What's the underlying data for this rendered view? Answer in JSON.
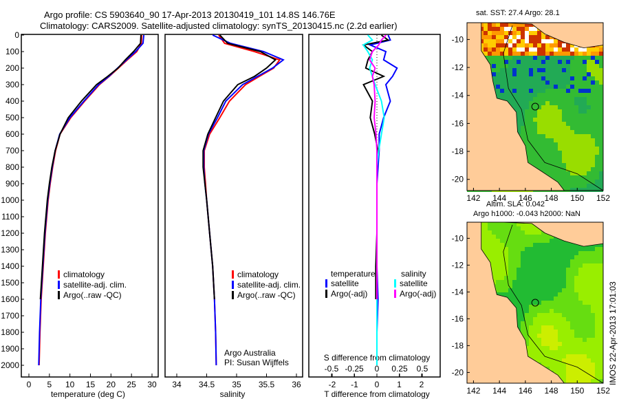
{
  "title_line1": "Argo profile: CS 5903640_90 17-Apr-2013 20130419_101 14.8S 146.76E",
  "title_line2": "Climatology: CARS2009. Satellite-adjusted climatology: synTS_20130415.nc (2.2d earlier)",
  "credit": "Argo Australia",
  "pi": "PI: Susan Wijffels",
  "timestamp": "IMOS 22-Apr-2013 17:01:03",
  "colors": {
    "climatology": "#ff0000",
    "satellite": "#0000ff",
    "argo": "#000000",
    "sal_satellite": "#00ffff",
    "sal_argo": "#ff00ff",
    "land": "#ffcc99"
  },
  "chart_data": [
    {
      "type": "line",
      "name": "temperature-profile",
      "xlabel": "temperature (deg C)",
      "ylabel": "",
      "xlim": [
        -1,
        31
      ],
      "ylim": [
        2050,
        0
      ],
      "xticks": [
        0,
        5,
        10,
        15,
        20,
        25,
        30
      ],
      "yticks": [
        0,
        100,
        200,
        300,
        400,
        500,
        600,
        700,
        800,
        900,
        1000,
        1100,
        1200,
        1300,
        1400,
        1500,
        1600,
        1700,
        1800,
        1900,
        2000
      ],
      "legend": [
        "climatology",
        "satellite-adj. clim.",
        "Argo(..raw -QC)"
      ],
      "legend_position": "lower-center",
      "depth": [
        0,
        50,
        100,
        150,
        200,
        250,
        300,
        400,
        500,
        600,
        700,
        800,
        900,
        1000,
        1200,
        1400,
        1600,
        1800,
        2000
      ],
      "series": [
        {
          "name": "climatology",
          "values": [
            27.5,
            27.4,
            26.3,
            24,
            21.8,
            19.6,
            17.2,
            13.6,
            10.2,
            7.6,
            6.5,
            5.8,
            5.2,
            4.7,
            4.0,
            3.5,
            3.0,
            2.7,
            2.5
          ]
        },
        {
          "name": "satellite-adj. clim.",
          "values": [
            28.0,
            27.8,
            26.0,
            23.8,
            21.6,
            19.5,
            17.0,
            13.4,
            10.0,
            7.5,
            6.4,
            5.7,
            5.1,
            4.6,
            3.9,
            3.4,
            2.9,
            2.6,
            2.4
          ]
        },
        {
          "name": "Argo(..raw -QC)",
          "values": [
            27.3,
            27.2,
            25.5,
            23.5,
            21.7,
            19.2,
            16.5,
            12.8,
            9.6,
            7.6,
            6.4,
            5.6,
            5.0,
            4.5,
            3.8,
            3.3,
            2.8,
            null,
            null
          ]
        }
      ]
    },
    {
      "type": "line",
      "name": "salinity-profile",
      "xlabel": "salinity",
      "xlim": [
        33.8,
        36.1
      ],
      "ylim": [
        2050,
        0
      ],
      "xticks": [
        34,
        34.5,
        35,
        35.5,
        36
      ],
      "legend": [
        "climatology",
        "satellite-adj. clim.",
        "Argo(..raw -QC)"
      ],
      "depth": [
        0,
        50,
        100,
        150,
        200,
        250,
        300,
        400,
        500,
        600,
        700,
        800,
        900,
        1000,
        1200,
        1400,
        1600,
        1800,
        2000
      ],
      "series": [
        {
          "name": "climatology",
          "values": [
            34.7,
            34.8,
            35.3,
            35.72,
            35.62,
            35.38,
            35.15,
            34.88,
            34.72,
            34.55,
            34.46,
            34.46,
            34.48,
            34.5,
            34.55,
            34.6,
            34.63,
            34.65,
            34.66
          ]
        },
        {
          "name": "satellite-adj. clim.",
          "values": [
            34.6,
            34.9,
            35.45,
            35.78,
            35.6,
            35.35,
            35.1,
            34.82,
            34.68,
            34.53,
            34.45,
            34.45,
            34.47,
            34.5,
            34.55,
            34.6,
            34.63,
            34.65,
            34.66
          ]
        },
        {
          "name": "Argo(..raw -QC)",
          "values": [
            34.72,
            34.85,
            35.4,
            35.65,
            35.5,
            35.3,
            35.02,
            34.78,
            34.65,
            34.52,
            34.44,
            34.44,
            34.47,
            34.5,
            34.55,
            34.6,
            34.63,
            null,
            null
          ]
        }
      ]
    },
    {
      "type": "line",
      "name": "difference-profile",
      "xlabel": "T difference from climatology",
      "x2label": "S difference from climatology",
      "xlim": [
        -2.8,
        2.8
      ],
      "x2lim": [
        -0.7,
        0.7
      ],
      "xticks": [
        -2,
        -1,
        0,
        1,
        2
      ],
      "x2ticks": [
        -0.5,
        -0.25,
        0,
        0.25,
        0.5
      ],
      "x2ticklabels": [
        "-0.5",
        "-0.25",
        "0",
        "0.25",
        "0.5"
      ],
      "legend_temperature_header": "temperature",
      "legend_salinity_header": "salinity",
      "legend": [
        "satellite",
        "Argo(-adj)",
        "satellite",
        "Argo(-adj)"
      ],
      "depth": [
        0,
        30,
        60,
        100,
        150,
        200,
        250,
        300,
        400,
        500,
        600,
        700,
        800,
        900,
        1000,
        1200,
        1400,
        1600,
        1800,
        2000
      ],
      "series": [
        {
          "name": "T satellite",
          "axis": "T",
          "values": [
            0.5,
            0.6,
            -0.3,
            0.4,
            0.3,
            0.9,
            0.7,
            0.4,
            0.6,
            0.3,
            0.1,
            0.1,
            0.05,
            0.0,
            0.0,
            0.0,
            0.0,
            0.05,
            0.0,
            0.0
          ]
        },
        {
          "name": "T Argo(-adj)",
          "axis": "T",
          "values": [
            0.2,
            0.5,
            -0.6,
            -0.2,
            -0.4,
            -0.5,
            0.3,
            -0.6,
            -0.2,
            -0.3,
            -0.1,
            0.05,
            0.0,
            0.0,
            0.0,
            0.0,
            -0.05,
            -0.05,
            null,
            null
          ]
        },
        {
          "name": "S satellite",
          "axis": "S",
          "values": [
            -0.1,
            -0.05,
            -0.15,
            -0.1,
            -0.05,
            -0.08,
            -0.05,
            -0.02,
            0.05,
            0.08,
            0.05,
            0.02,
            0.0,
            0.0,
            0.0,
            0.0,
            0.0,
            0.0,
            0.0,
            0.0
          ]
        },
        {
          "name": "S Argo(-adj)",
          "axis": "S",
          "values": [
            0.1,
            0.05,
            0.02,
            -0.05,
            -0.08,
            -0.02,
            -0.05,
            -0.03,
            -0.02,
            -0.03,
            -0.01,
            0.0,
            0.0,
            0.0,
            0.0,
            0.0,
            0.0,
            0.0,
            null,
            null
          ]
        }
      ]
    },
    {
      "type": "heatmap",
      "name": "sst-map",
      "title": "sat. SST: 27.4  Argo: 28.1",
      "xticks": [
        142,
        144,
        146,
        148,
        150,
        152
      ],
      "yticks": [
        -10,
        -12,
        -14,
        -16,
        -18,
        -20
      ],
      "xlim": [
        141.5,
        152
      ],
      "ylim": [
        -20.8,
        -8.8
      ],
      "argo_position": [
        146.76,
        -14.8
      ]
    },
    {
      "type": "heatmap",
      "name": "sla-map",
      "title_line1": "Altim. SLA: 0.042",
      "title_line2": "Argo h1000: -0.043 h2000: NaN",
      "xticks": [
        142,
        144,
        146,
        148,
        150,
        152
      ],
      "yticks": [
        -10,
        -12,
        -14,
        -16,
        -18,
        -20
      ],
      "xlim": [
        141.5,
        152
      ],
      "ylim": [
        -20.8,
        -8.8
      ],
      "argo_position": [
        146.76,
        -14.8
      ]
    }
  ]
}
